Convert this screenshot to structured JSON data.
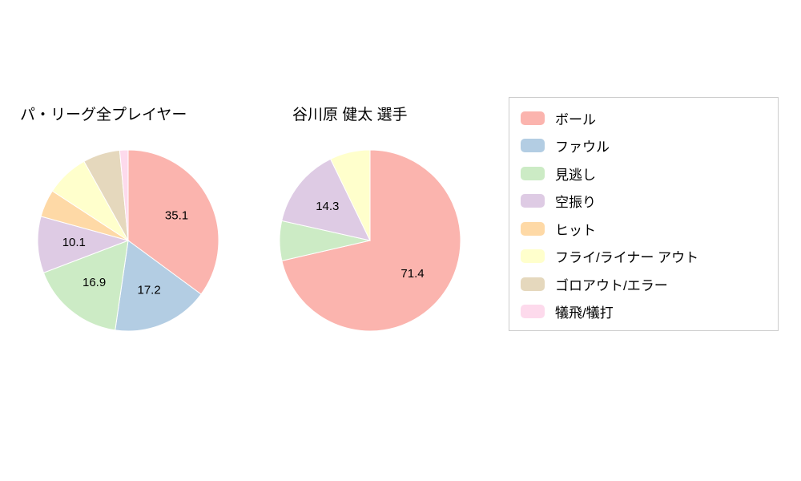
{
  "colors": {
    "ball": "#fbb4ae",
    "foul": "#b3cde3",
    "called-strike": "#ccebc5",
    "swinging-strike": "#decbe4",
    "hit": "#fed9a6",
    "fly-liner-out": "#ffffcc",
    "groundout-error": "#e5d8bd",
    "sac-fly-bunt": "#fddaec"
  },
  "legend": {
    "items": [
      {
        "key": "ball",
        "label": "ボール"
      },
      {
        "key": "foul",
        "label": "ファウル"
      },
      {
        "key": "called-strike",
        "label": "見逃し"
      },
      {
        "key": "swinging-strike",
        "label": "空振り"
      },
      {
        "key": "hit",
        "label": "ヒット"
      },
      {
        "key": "fly-liner-out",
        "label": "フライ/ライナー アウト"
      },
      {
        "key": "groundout-error",
        "label": "ゴロアウト/エラー"
      },
      {
        "key": "sac-fly-bunt",
        "label": "犠飛/犠打"
      }
    ]
  },
  "chart_data": [
    {
      "type": "pie",
      "title": "パ・リーグ全プレイヤー",
      "start_angle_deg": -90,
      "direction": "clockwise",
      "legend_position": "right",
      "slices": [
        {
          "key": "ball",
          "label": "ボール",
          "value": 35.1,
          "show_value": true,
          "value_text": "35.1"
        },
        {
          "key": "foul",
          "label": "ファウル",
          "value": 17.2,
          "show_value": true,
          "value_text": "17.2"
        },
        {
          "key": "called-strike",
          "label": "見逃し",
          "value": 16.9,
          "show_value": true,
          "value_text": "16.9"
        },
        {
          "key": "swinging-strike",
          "label": "空振り",
          "value": 10.1,
          "show_value": true,
          "value_text": "10.1"
        },
        {
          "key": "hit",
          "label": "ヒット",
          "value": 4.9,
          "show_value": false,
          "value_text": ""
        },
        {
          "key": "fly-liner-out",
          "label": "フライ/ライナー アウト",
          "value": 7.7,
          "show_value": false,
          "value_text": ""
        },
        {
          "key": "groundout-error",
          "label": "ゴロアウト/エラー",
          "value": 6.6,
          "show_value": false,
          "value_text": ""
        },
        {
          "key": "sac-fly-bunt",
          "label": "犠飛/犠打",
          "value": 1.5,
          "show_value": false,
          "value_text": ""
        }
      ]
    },
    {
      "type": "pie",
      "title": "谷川原 健太 選手",
      "start_angle_deg": -90,
      "direction": "clockwise",
      "legend_position": "right",
      "slices": [
        {
          "key": "ball",
          "label": "ボール",
          "value": 71.4,
          "show_value": true,
          "value_text": "71.4"
        },
        {
          "key": "called-strike",
          "label": "見逃し",
          "value": 7.1,
          "show_value": false,
          "value_text": ""
        },
        {
          "key": "swinging-strike",
          "label": "空振り",
          "value": 14.3,
          "show_value": true,
          "value_text": "14.3"
        },
        {
          "key": "fly-liner-out",
          "label": "フライ/ライナー アウト",
          "value": 7.2,
          "show_value": false,
          "value_text": ""
        }
      ]
    }
  ]
}
